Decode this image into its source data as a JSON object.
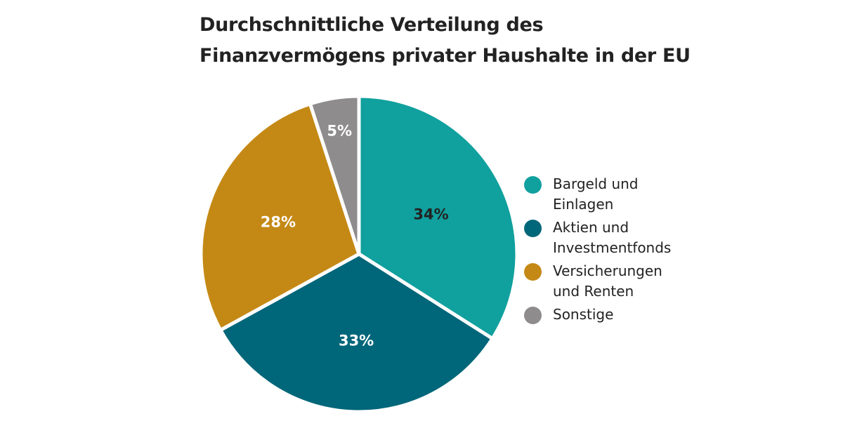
{
  "title_lines": [
    "Durchschnittliche Verteilung des",
    "Finanzvermögens privater Haushalte in der EU"
  ],
  "chart_data": {
    "type": "pie",
    "title": "Durchschnittliche Verteilung des Finanzvermögens privater Haushalte in der EU",
    "slices": [
      {
        "label": "Bargeld und Einlagen",
        "value": 34,
        "data_label": "34%",
        "color": "#10a09e",
        "label_color": "#222222"
      },
      {
        "label": "Aktien und Investmentfonds",
        "value": 33,
        "data_label": "33%",
        "color": "#006679",
        "label_color": "#ffffff"
      },
      {
        "label": "Versicherungen und Renten",
        "value": 28,
        "data_label": "28%",
        "color": "#c48915",
        "label_color": "#ffffff"
      },
      {
        "label": "Sonstige",
        "value": 5,
        "data_label": "5%",
        "color": "#8e8c8c",
        "label_color": "#ffffff"
      }
    ],
    "start": "12 o'clock",
    "direction": "clockwise",
    "legend_position": "right"
  },
  "legend": {
    "items": [
      {
        "lines": [
          "Bargeld und",
          "Einlagen"
        ]
      },
      {
        "lines": [
          "Aktien und",
          "Investmentfonds"
        ]
      },
      {
        "lines": [
          "Versicherungen",
          "und Renten"
        ]
      },
      {
        "lines": [
          "Sonstige"
        ]
      }
    ]
  }
}
